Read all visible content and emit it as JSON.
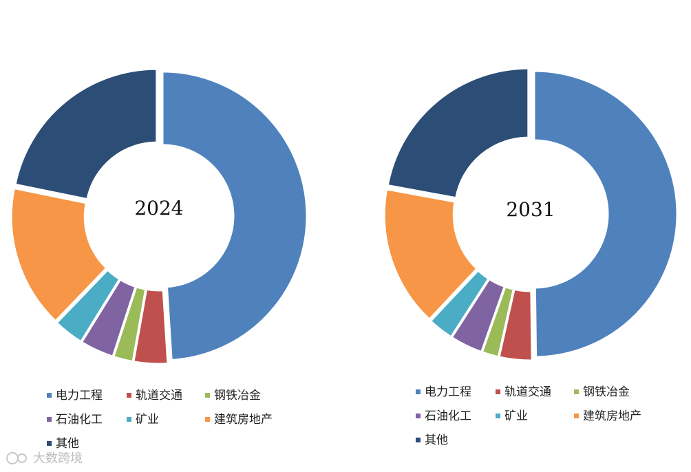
{
  "chart_data": [
    {
      "type": "pie",
      "center_label": "2024",
      "categories": [
        "电力工程",
        "轨道交通",
        "钢铁冶金",
        "石油化工",
        "矿业",
        "建筑房地产",
        "其他"
      ],
      "values": [
        49.0,
        3.8,
        2.2,
        3.8,
        3.4,
        16.0,
        21.8
      ],
      "colors": [
        "#4F81BD",
        "#C0504D",
        "#9BBB59",
        "#8064A2",
        "#4BACC6",
        "#F79646",
        "#2C4D75"
      ],
      "legend_position": "bottom"
    },
    {
      "type": "pie",
      "center_label": "2031",
      "categories": [
        "电力工程",
        "轨道交通",
        "钢铁冶金",
        "石油化工",
        "矿业",
        "建筑房地产",
        "其他"
      ],
      "values": [
        49.8,
        3.7,
        1.9,
        3.7,
        2.9,
        15.9,
        22.1
      ],
      "colors": [
        "#4F81BD",
        "#C0504D",
        "#9BBB59",
        "#8064A2",
        "#4BACC6",
        "#F79646",
        "#2C4D75"
      ],
      "legend_position": "bottom"
    }
  ],
  "watermark": "大数跨境"
}
